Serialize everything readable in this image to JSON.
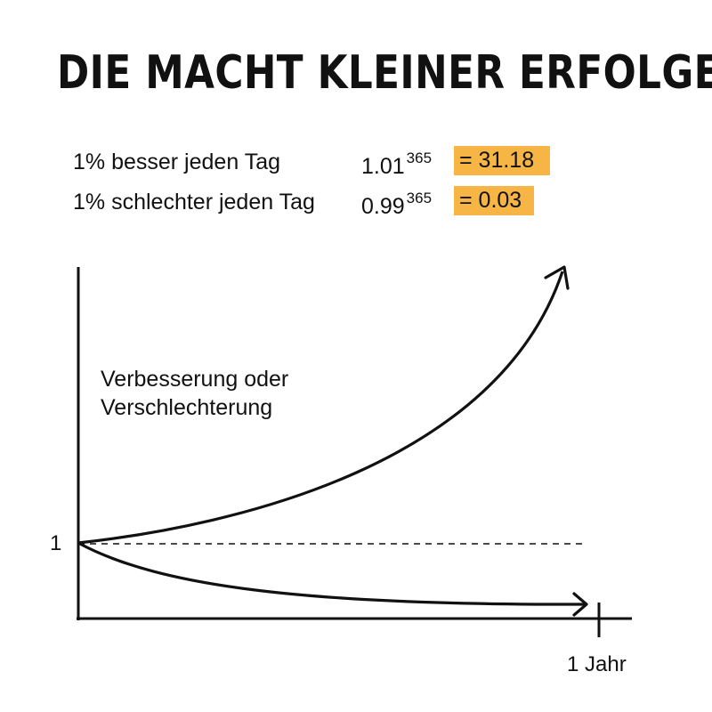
{
  "title": "DIE MACHT KLEINER ERFOLGE",
  "formulas": [
    {
      "label": "1% besser jeden Tag",
      "base": "1.01",
      "exponent": "365",
      "result": "= 31.18"
    },
    {
      "label": "1% schlechter jeden Tag",
      "base": "0.99",
      "exponent": "365",
      "result": "= 0.03"
    }
  ],
  "colors": {
    "highlight": "#f6b545",
    "ink": "#111111"
  },
  "chart_data": {
    "type": "line",
    "ylabel_line1": "Verbesserung oder",
    "ylabel_line2": "Verschlechterung",
    "y_tick": "1",
    "x_tick": "1 Jahr",
    "baseline": 1,
    "series": [
      {
        "x": [
          0,
          365
        ],
        "y": [
          1,
          31.18
        ]
      },
      {
        "x": [
          0,
          365
        ],
        "y": [
          1,
          0.03
        ]
      }
    ],
    "grid": false,
    "legend": false
  }
}
